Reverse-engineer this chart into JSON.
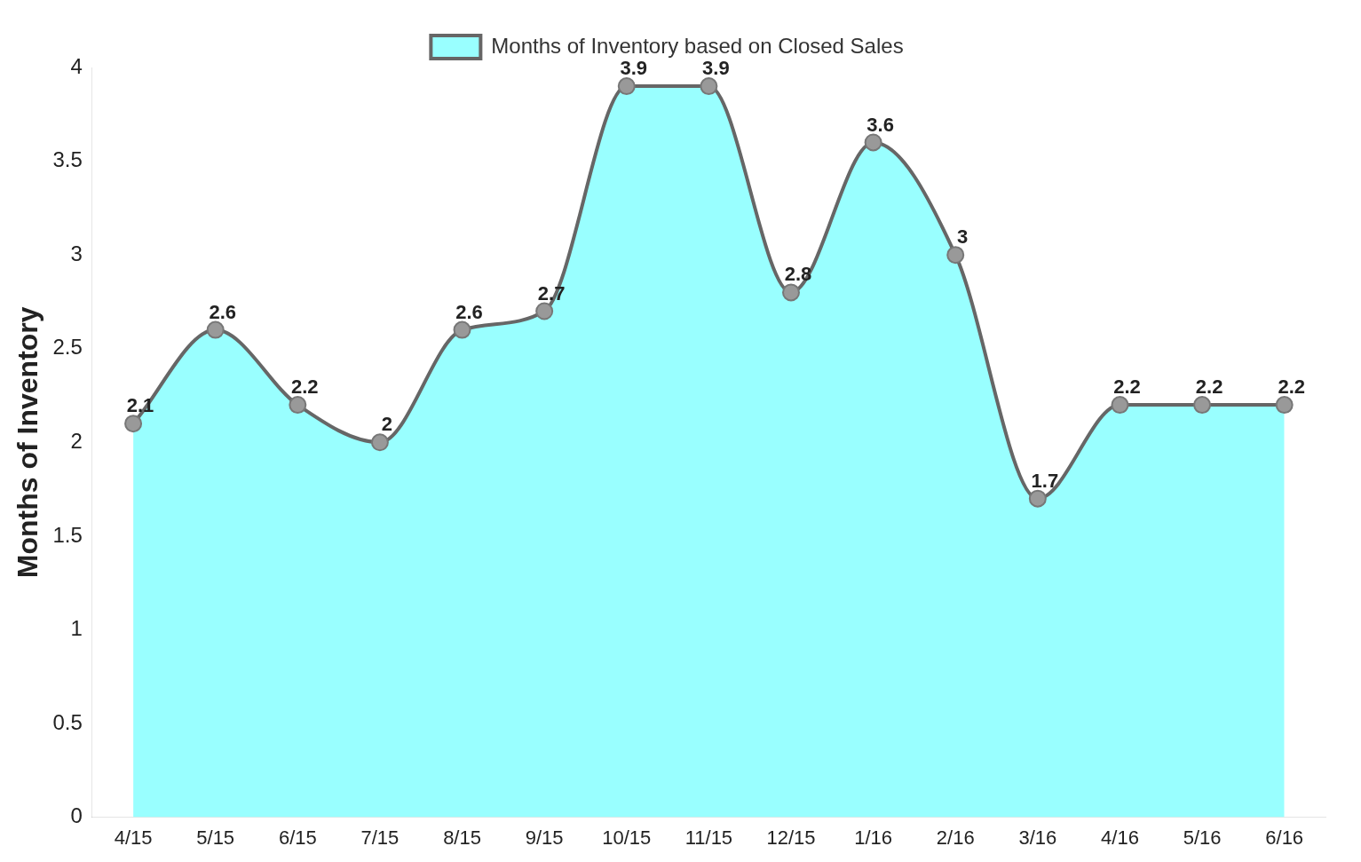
{
  "chart_data": {
    "type": "area",
    "ylabel": "Months of Inventory",
    "categories": [
      "4/15",
      "5/15",
      "6/15",
      "7/15",
      "8/15",
      "9/15",
      "10/15",
      "11/15",
      "12/15",
      "1/16",
      "2/16",
      "3/16",
      "4/16",
      "5/16",
      "6/16"
    ],
    "series": [
      {
        "name": "Months of Inventory based on Closed Sales",
        "color": "#99ffff",
        "values": [
          2.1,
          2.6,
          2.2,
          2,
          2.6,
          2.7,
          3.9,
          3.9,
          2.8,
          3.6,
          3,
          1.7,
          2.2,
          2.2,
          2.2
        ]
      }
    ],
    "ylim": [
      0,
      4
    ],
    "yticks": [
      0,
      0.5,
      1,
      1.5,
      2,
      2.5,
      3,
      3.5,
      4
    ],
    "grid": false,
    "legend": "top",
    "marker": "circle",
    "data_labels": true
  }
}
